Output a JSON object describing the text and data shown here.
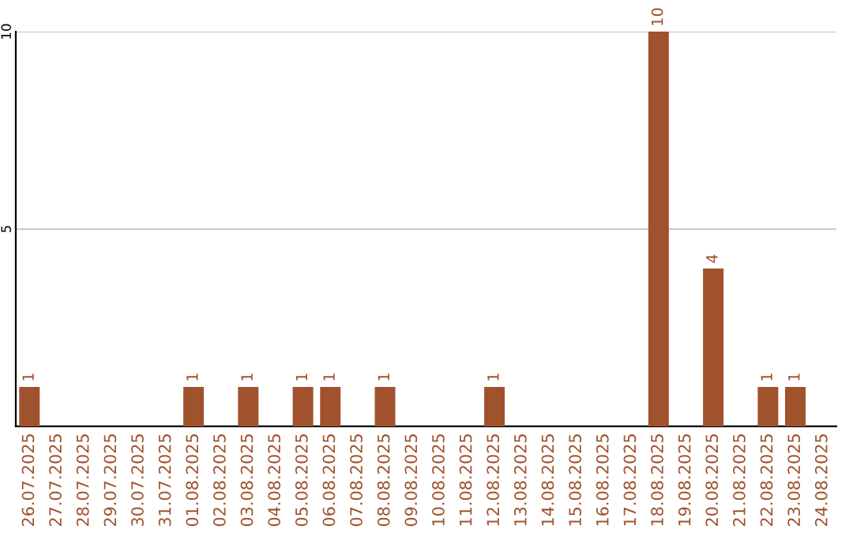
{
  "chart_data": {
    "type": "bar",
    "categories": [
      "26.07.2025",
      "27.07.2025",
      "28.07.2025",
      "29.07.2025",
      "30.07.2025",
      "31.07.2025",
      "01.08.2025",
      "02.08.2025",
      "03.08.2025",
      "04.08.2025",
      "05.08.2025",
      "06.08.2025",
      "07.08.2025",
      "08.08.2025",
      "09.08.2025",
      "10.08.2025",
      "11.08.2025",
      "12.08.2025",
      "13.08.2025",
      "14.08.2025",
      "15.08.2025",
      "16.08.2025",
      "17.08.2025",
      "18.08.2025",
      "19.08.2025",
      "20.08.2025",
      "21.08.2025",
      "22.08.2025",
      "23.08.2025",
      "24.08.2025"
    ],
    "values": [
      1,
      0,
      0,
      0,
      0,
      0,
      1,
      0,
      1,
      0,
      1,
      1,
      0,
      1,
      0,
      0,
      0,
      1,
      0,
      0,
      0,
      0,
      0,
      10,
      0,
      4,
      0,
      1,
      1,
      0
    ],
    "color": "#a0522d",
    "ylim": [
      0,
      10
    ],
    "yticks": [
      {
        "value": 0,
        "label": null
      },
      5,
      10
    ],
    "grid": "y",
    "value_labels": [
      "1",
      null,
      null,
      null,
      null,
      null,
      "1",
      null,
      "1",
      null,
      "1",
      "1",
      null,
      "1",
      null,
      null,
      null,
      "1",
      null,
      null,
      null,
      null,
      null,
      "10",
      null,
      "4",
      null,
      "1",
      "1",
      null
    ]
  }
}
